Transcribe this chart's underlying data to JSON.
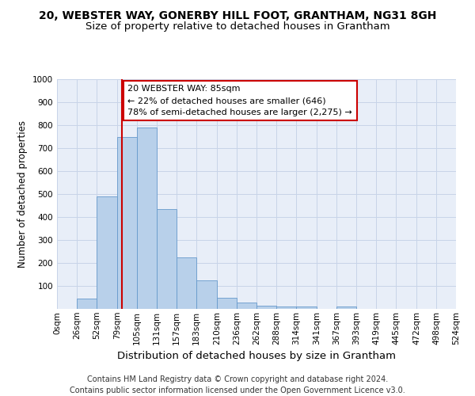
{
  "title_line1": "20, WEBSTER WAY, GONERBY HILL FOOT, GRANTHAM, NG31 8GH",
  "title_line2": "Size of property relative to detached houses in Grantham",
  "xlabel": "Distribution of detached houses by size in Grantham",
  "ylabel": "Number of detached properties",
  "bin_labels": [
    "0sqm",
    "26sqm",
    "52sqm",
    "79sqm",
    "105sqm",
    "131sqm",
    "157sqm",
    "183sqm",
    "210sqm",
    "236sqm",
    "262sqm",
    "288sqm",
    "314sqm",
    "341sqm",
    "367sqm",
    "393sqm",
    "419sqm",
    "445sqm",
    "472sqm",
    "498sqm",
    "524sqm"
  ],
  "bins": [
    0,
    26,
    52,
    79,
    105,
    131,
    157,
    183,
    210,
    236,
    262,
    288,
    314,
    341,
    367,
    393,
    419,
    445,
    472,
    498,
    524
  ],
  "heights": [
    0,
    45,
    490,
    750,
    790,
    435,
    225,
    125,
    50,
    27,
    13,
    10,
    10,
    0,
    10,
    0,
    0,
    0,
    0,
    0,
    0
  ],
  "bar_color": "#b8d0ea",
  "bar_edge_color": "#6699cc",
  "property_value": 85,
  "red_line_color": "#cc0000",
  "annotation_text": "20 WEBSTER WAY: 85sqm\n← 22% of detached houses are smaller (646)\n78% of semi-detached houses are larger (2,275) →",
  "annotation_box_color": "#ffffff",
  "annotation_box_edge": "#cc0000",
  "ylim": [
    0,
    1000
  ],
  "yticks": [
    0,
    100,
    200,
    300,
    400,
    500,
    600,
    700,
    800,
    900,
    1000
  ],
  "grid_color": "#c8d4e8",
  "bg_color": "#e8eef8",
  "footer_text": "Contains HM Land Registry data © Crown copyright and database right 2024.\nContains public sector information licensed under the Open Government Licence v3.0.",
  "title1_fontsize": 10,
  "title2_fontsize": 9.5,
  "xlabel_fontsize": 9.5,
  "ylabel_fontsize": 8.5,
  "annotation_fontsize": 8,
  "footer_fontsize": 7,
  "tick_fontsize": 7.5
}
